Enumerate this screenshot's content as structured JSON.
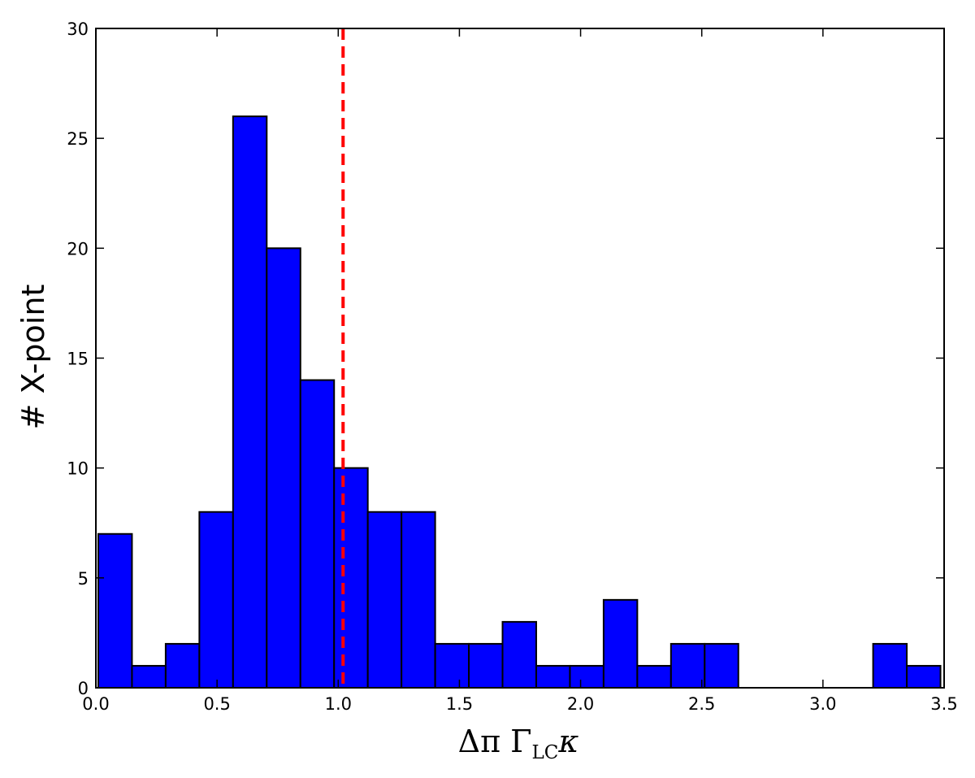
{
  "chart_data": {
    "type": "bar",
    "subtype": "histogram",
    "xlabel": {
      "main": "Δπ Γ",
      "subscript": "LC",
      "tail": "κ"
    },
    "ylabel": "# X-point",
    "xlim": [
      0.0,
      3.5
    ],
    "ylim": [
      0,
      30
    ],
    "xticks": [
      "0.0",
      "0.5",
      "1.0",
      "1.5",
      "2.0",
      "2.5",
      "3.0",
      "3.5"
    ],
    "yticks": [
      "0",
      "5",
      "10",
      "15",
      "20",
      "25",
      "30"
    ],
    "bin_edges": [
      0.01,
      0.149,
      0.288,
      0.427,
      0.566,
      0.705,
      0.844,
      0.983,
      1.122,
      1.261,
      1.4,
      1.539,
      1.678,
      1.817,
      1.956,
      2.095,
      2.234,
      2.373,
      2.512,
      2.651,
      2.79,
      2.929,
      3.068,
      3.207,
      3.346,
      3.485
    ],
    "counts": [
      7,
      1,
      2,
      8,
      26,
      20,
      14,
      10,
      8,
      8,
      2,
      2,
      3,
      1,
      1,
      4,
      1,
      2,
      2,
      0,
      0,
      0,
      0,
      2,
      1
    ],
    "bar_color": "#0000ff",
    "edge_color": "#000000",
    "reference_line": {
      "x": 1.02,
      "style": "dashed",
      "color": "#ff0000"
    },
    "grid": false,
    "legend": "none"
  }
}
